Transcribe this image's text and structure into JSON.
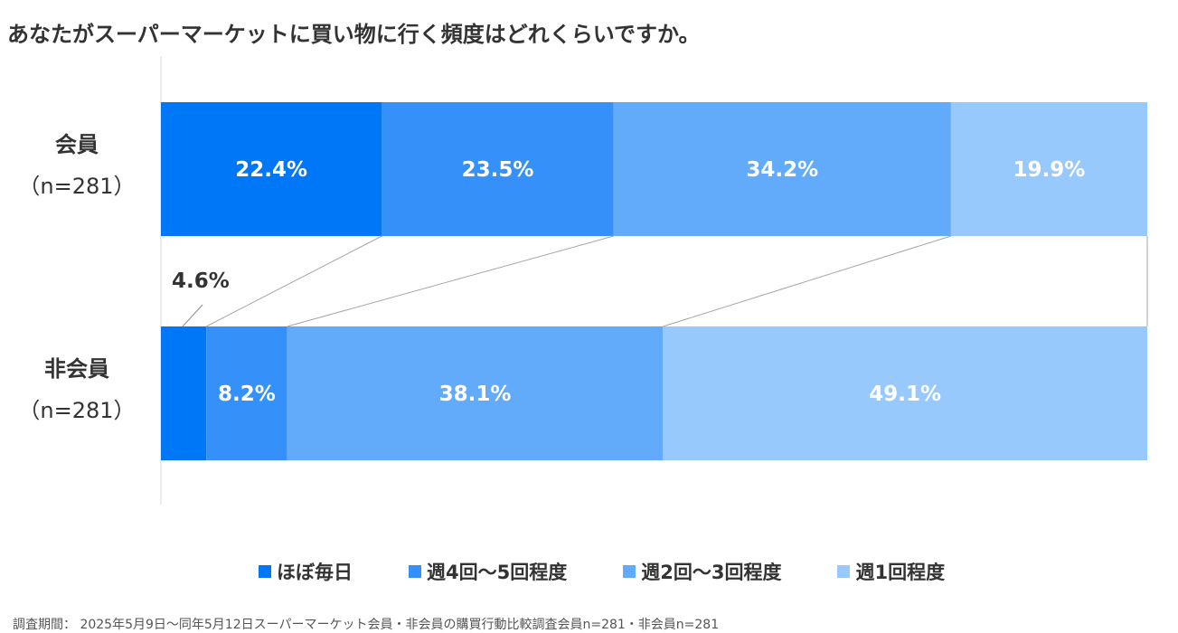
{
  "title": "あなたがスーパーマーケットに買い物に行く頻度はどれくらいですか。",
  "chart_data": {
    "type": "bar",
    "orientation": "horizontal",
    "stacked": true,
    "normalized": true,
    "categories": [
      {
        "name": "会員",
        "n_label": "（n=281）"
      },
      {
        "name": "非会員",
        "n_label": "（n=281）"
      }
    ],
    "series": [
      {
        "name": "ほぼ毎日",
        "values": [
          22.4,
          4.6
        ],
        "labels": [
          "22.4%",
          "4.6%"
        ],
        "color": "#0077f7"
      },
      {
        "name": "週4回～5回程度",
        "values": [
          23.5,
          8.2
        ],
        "labels": [
          "23.5%",
          "8.2%"
        ],
        "color": "#3591f9"
      },
      {
        "name": "週2回～3回程度",
        "values": [
          34.2,
          38.1
        ],
        "labels": [
          "34.2%",
          "38.1%"
        ],
        "color": "#62abfb"
      },
      {
        "name": "週1回程度",
        "values": [
          19.9,
          49.1
        ],
        "labels": [
          "19.9%",
          "49.1%"
        ],
        "color": "#98c9fc"
      }
    ],
    "xlim": [
      0,
      100
    ],
    "grid": false,
    "legend_position": "bottom",
    "connector_lines": true,
    "label_color_inside": "#ffffff",
    "label_color_outside": "#333333"
  },
  "footnote": "調査期間： 2025年5月9日～同年5月12日スーパーマーケット会員・非会員の購買行動比較調査会員n=281・非会員n=281"
}
